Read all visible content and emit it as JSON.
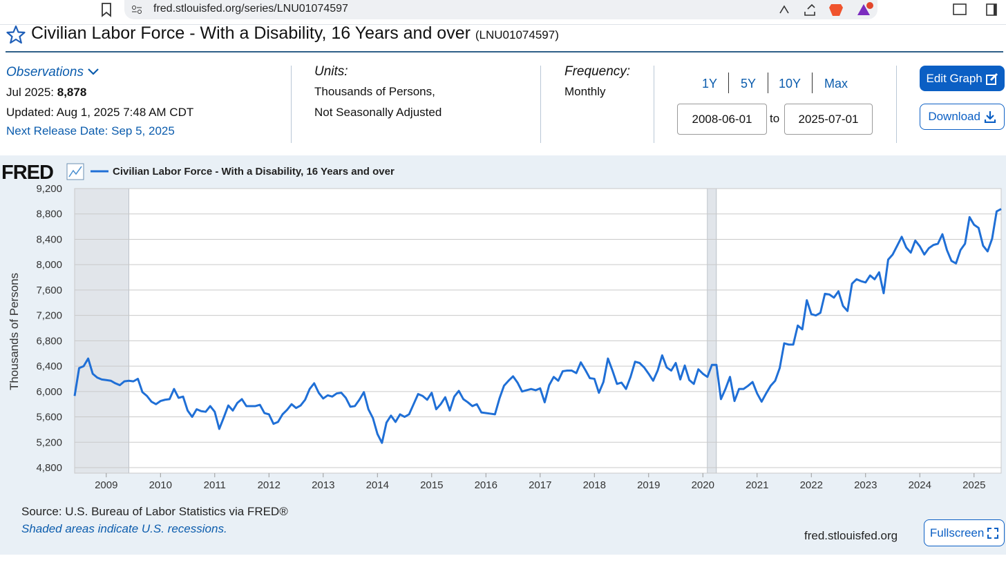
{
  "browser": {
    "url": "fred.stlouisfed.org/series/LNU01074597"
  },
  "header": {
    "title": "Civilian Labor Force - With a Disability, 16 Years and over",
    "series_id": "(LNU01074597)"
  },
  "observations": {
    "label": "Observations",
    "latest_label": "Jul 2025:",
    "latest_value": "8,878",
    "updated": "Updated: Aug 1, 2025 7:48 AM CDT",
    "next_release": "Next Release Date: Sep 5, 2025"
  },
  "units": {
    "label": "Units:",
    "lines": [
      "Thousands of Persons,",
      "Not Seasonally Adjusted"
    ]
  },
  "frequency": {
    "label": "Frequency:",
    "value": "Monthly"
  },
  "range": {
    "buttons": [
      "1Y",
      "5Y",
      "10Y",
      "Max"
    ],
    "start": "2008-06-01",
    "separator": "to",
    "end": "2025-07-01"
  },
  "actions": {
    "edit": "Edit Graph",
    "download": "Download"
  },
  "chart_data": {
    "type": "line",
    "logo": "FRED",
    "ylabel": "Thousands of Persons",
    "xlim": [
      "2008-06",
      "2025-07"
    ],
    "xticks": [
      {
        "value": "2009-01",
        "label": "2009"
      },
      {
        "value": "2010-01",
        "label": "2010"
      },
      {
        "value": "2011-01",
        "label": "2011"
      },
      {
        "value": "2012-01",
        "label": "2012"
      },
      {
        "value": "2013-01",
        "label": "2013"
      },
      {
        "value": "2014-01",
        "label": "2014"
      },
      {
        "value": "2015-01",
        "label": "2015"
      },
      {
        "value": "2016-01",
        "label": "2016"
      },
      {
        "value": "2017-01",
        "label": "2017"
      },
      {
        "value": "2018-01",
        "label": "2018"
      },
      {
        "value": "2019-01",
        "label": "2019"
      },
      {
        "value": "2020-01",
        "label": "2020"
      },
      {
        "value": "2021-01",
        "label": "2021"
      },
      {
        "value": "2022-01",
        "label": "2022"
      },
      {
        "value": "2023-01",
        "label": "2023"
      },
      {
        "value": "2024-01",
        "label": "2024"
      },
      {
        "value": "2025-01",
        "label": "2025"
      }
    ],
    "ylim": [
      4800,
      9200
    ],
    "yticks": [
      {
        "value": 4800,
        "label": "4,800"
      },
      {
        "value": 5200,
        "label": "5,200"
      },
      {
        "value": 5600,
        "label": "5,600"
      },
      {
        "value": 6000,
        "label": "6,000"
      },
      {
        "value": 6400,
        "label": "6,400"
      },
      {
        "value": 6800,
        "label": "6,800"
      },
      {
        "value": 7200,
        "label": "7,200"
      },
      {
        "value": 7600,
        "label": "7,600"
      },
      {
        "value": 8000,
        "label": "8,000"
      },
      {
        "value": 8400,
        "label": "8,400"
      },
      {
        "value": 8800,
        "label": "8,800"
      },
      {
        "value": 9200,
        "label": "9,200"
      }
    ],
    "grid": true,
    "recessions": [
      [
        "2008-06",
        "2009-06"
      ],
      [
        "2020-02",
        "2020-04"
      ]
    ],
    "recession_color": "#e1e5ea",
    "x": [
      "2008-06",
      "2008-07",
      "2008-08",
      "2008-09",
      "2008-10",
      "2008-11",
      "2008-12",
      "2009-01",
      "2009-02",
      "2009-03",
      "2009-04",
      "2009-05",
      "2009-06",
      "2009-07",
      "2009-08",
      "2009-09",
      "2009-10",
      "2009-11",
      "2009-12",
      "2010-01",
      "2010-02",
      "2010-03",
      "2010-04",
      "2010-05",
      "2010-06",
      "2010-07",
      "2010-08",
      "2010-09",
      "2010-10",
      "2010-11",
      "2010-12",
      "2011-01",
      "2011-02",
      "2011-03",
      "2011-04",
      "2011-05",
      "2011-06",
      "2011-07",
      "2011-08",
      "2011-09",
      "2011-10",
      "2011-11",
      "2011-12",
      "2012-01",
      "2012-02",
      "2012-03",
      "2012-04",
      "2012-05",
      "2012-06",
      "2012-07",
      "2012-08",
      "2012-09",
      "2012-10",
      "2012-11",
      "2012-12",
      "2013-01",
      "2013-02",
      "2013-03",
      "2013-04",
      "2013-05",
      "2013-06",
      "2013-07",
      "2013-08",
      "2013-09",
      "2013-10",
      "2013-11",
      "2013-12",
      "2014-01",
      "2014-02",
      "2014-03",
      "2014-04",
      "2014-05",
      "2014-06",
      "2014-07",
      "2014-08",
      "2014-09",
      "2014-10",
      "2014-11",
      "2014-12",
      "2015-01",
      "2015-02",
      "2015-03",
      "2015-04",
      "2015-05",
      "2015-06",
      "2015-07",
      "2015-08",
      "2015-09",
      "2015-10",
      "2015-11",
      "2015-12",
      "2016-01",
      "2016-02",
      "2016-03",
      "2016-04",
      "2016-05",
      "2016-06",
      "2016-07",
      "2016-08",
      "2016-09",
      "2016-10",
      "2016-11",
      "2016-12",
      "2017-01",
      "2017-02",
      "2017-03",
      "2017-04",
      "2017-05",
      "2017-06",
      "2017-07",
      "2017-08",
      "2017-09",
      "2017-10",
      "2017-11",
      "2017-12",
      "2018-01",
      "2018-02",
      "2018-03",
      "2018-04",
      "2018-05",
      "2018-06",
      "2018-07",
      "2018-08",
      "2018-09",
      "2018-10",
      "2018-11",
      "2018-12",
      "2019-01",
      "2019-02",
      "2019-03",
      "2019-04",
      "2019-05",
      "2019-06",
      "2019-07",
      "2019-08",
      "2019-09",
      "2019-10",
      "2019-11",
      "2019-12",
      "2020-01",
      "2020-02",
      "2020-03",
      "2020-04",
      "2020-05",
      "2020-06",
      "2020-07",
      "2020-08",
      "2020-09",
      "2020-10",
      "2020-11",
      "2020-12",
      "2021-01",
      "2021-02",
      "2021-03",
      "2021-04",
      "2021-05",
      "2021-06",
      "2021-07",
      "2021-08",
      "2021-09",
      "2021-10",
      "2021-11",
      "2021-12",
      "2022-01",
      "2022-02",
      "2022-03",
      "2022-04",
      "2022-05",
      "2022-06",
      "2022-07",
      "2022-08",
      "2022-09",
      "2022-10",
      "2022-11",
      "2022-12",
      "2023-01",
      "2023-02",
      "2023-03",
      "2023-04",
      "2023-05",
      "2023-06",
      "2023-07",
      "2023-08",
      "2023-09",
      "2023-10",
      "2023-11",
      "2023-12",
      "2024-01",
      "2024-02",
      "2024-03",
      "2024-04",
      "2024-05",
      "2024-06",
      "2024-07",
      "2024-08",
      "2024-09",
      "2024-10",
      "2024-11",
      "2024-12",
      "2025-01",
      "2025-02",
      "2025-03",
      "2025-04",
      "2025-05",
      "2025-06",
      "2025-07"
    ],
    "series": [
      {
        "name": "Civilian Labor Force - With a Disability, 16 Years and over",
        "color": "#1f6fd6",
        "values": [
          5930,
          6370,
          6400,
          6520,
          6280,
          6220,
          6190,
          6180,
          6170,
          6130,
          6100,
          6160,
          6170,
          6160,
          6200,
          5990,
          5930,
          5840,
          5800,
          5850,
          5870,
          5880,
          6040,
          5900,
          5920,
          5700,
          5600,
          5720,
          5690,
          5680,
          5770,
          5680,
          5410,
          5590,
          5780,
          5700,
          5820,
          5880,
          5770,
          5770,
          5770,
          5790,
          5660,
          5640,
          5490,
          5520,
          5640,
          5710,
          5800,
          5740,
          5780,
          5870,
          6040,
          6130,
          5980,
          5890,
          5940,
          5920,
          5970,
          5980,
          5900,
          5760,
          5770,
          5870,
          5990,
          5720,
          5580,
          5330,
          5190,
          5510,
          5620,
          5520,
          5640,
          5600,
          5640,
          5800,
          5960,
          5930,
          5870,
          5980,
          5720,
          5800,
          5910,
          5700,
          5920,
          6010,
          5880,
          5830,
          5770,
          5800,
          5670,
          5660,
          5650,
          5640,
          5890,
          6090,
          6170,
          6240,
          6140,
          6000,
          6020,
          6040,
          6020,
          6050,
          5830,
          6100,
          6230,
          6170,
          6320,
          6330,
          6330,
          6290,
          6460,
          6340,
          6210,
          6200,
          5980,
          6150,
          6520,
          6330,
          6120,
          6140,
          6040,
          6230,
          6470,
          6450,
          6380,
          6280,
          6170,
          6330,
          6570,
          6380,
          6330,
          6450,
          6190,
          6410,
          6180,
          6120,
          6350,
          6280,
          6230,
          6420,
          6420,
          5880,
          6040,
          6230,
          5850,
          6040,
          6040,
          6090,
          6150,
          5970,
          5840,
          5970,
          6090,
          6170,
          6370,
          6760,
          6740,
          6740,
          7040,
          6980,
          7440,
          7220,
          7200,
          7240,
          7540,
          7530,
          7480,
          7580,
          7350,
          7270,
          7700,
          7770,
          7740,
          7720,
          7830,
          7770,
          7880,
          7550,
          8080,
          8160,
          8300,
          8440,
          8270,
          8190,
          8380,
          8290,
          8160,
          8260,
          8310,
          8330,
          8480,
          8230,
          8060,
          8020,
          8230,
          8330,
          8750,
          8630,
          8580,
          8300,
          8210,
          8410,
          8840,
          8878
        ]
      }
    ]
  },
  "footer": {
    "source": "Source: U.S. Bureau of Labor Statistics via FRED®",
    "note": "Shaded areas indicate U.S. recessions.",
    "site": "fred.stlouisfed.org",
    "fullscreen": "Fullscreen"
  }
}
